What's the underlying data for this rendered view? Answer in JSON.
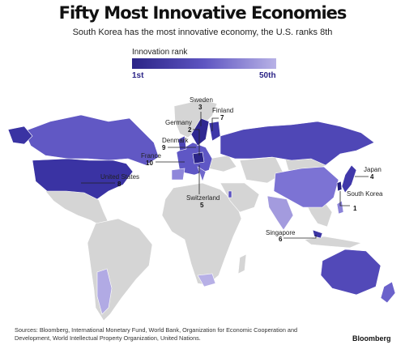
{
  "title": "Fifty Most Innovative Economies",
  "subtitle": "South Korea has the most innovative economy, the U.S. ranks 8th",
  "legend": {
    "title": "Innovation rank",
    "min_label": "1st",
    "max_label": "50th",
    "colors": [
      "#2b2487",
      "#5e55c1",
      "#b8b2e6"
    ]
  },
  "colors": {
    "unranked_land": "#d5d5d5",
    "ocean": "#ffffff"
  },
  "callouts": [
    {
      "country": "Sweden",
      "rank": "3"
    },
    {
      "country": "Finland",
      "rank": "7"
    },
    {
      "country": "Germany",
      "rank": "2"
    },
    {
      "country": "Denmark",
      "rank": "9"
    },
    {
      "country": "France",
      "rank": "10"
    },
    {
      "country": "Japan",
      "rank": "4"
    },
    {
      "country": "United States",
      "rank": "8"
    },
    {
      "country": "South Korea",
      "rank": "1"
    },
    {
      "country": "Switzerland",
      "rank": "5"
    },
    {
      "country": "Singapore",
      "rank": "6"
    }
  ],
  "sources": "Sources: Bloomberg, International Monetary Fund, World Bank, Organization for Economic Cooperation and Development, World Intellectual Property Organization, United Nations.",
  "logo": "Bloomberg"
}
